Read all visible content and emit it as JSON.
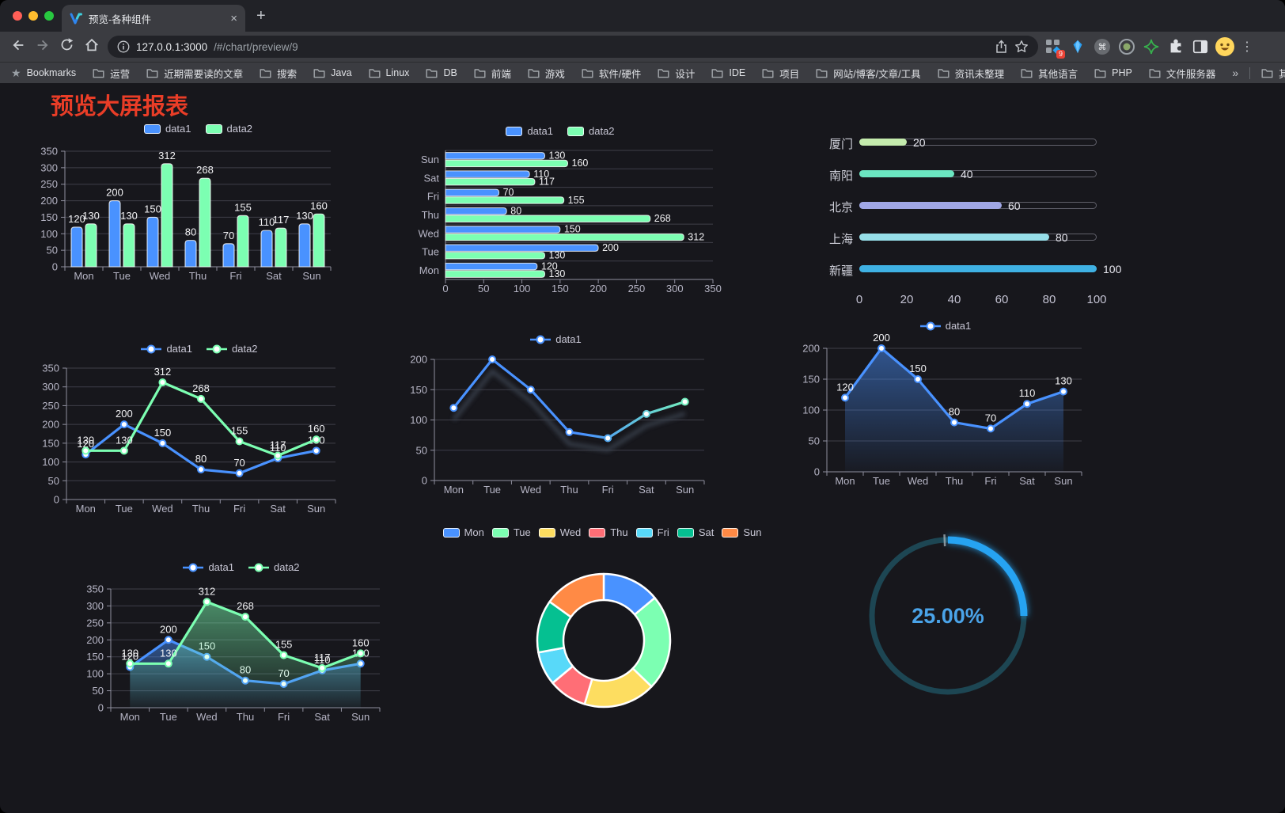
{
  "browser": {
    "tab": {
      "title": "预览-各种组件",
      "close_glyph": "×",
      "new_tab_glyph": "+"
    },
    "toolbar": {
      "url_host": "127.0.0.1:3000",
      "url_path": "/#/chart/preview/9",
      "extension_badge": "9"
    },
    "bookmarks_bar": {
      "label": "Bookmarks",
      "folders": [
        "运营",
        "近期需要读的文章",
        "搜索",
        "Java",
        "Linux",
        "DB",
        "前端",
        "游戏",
        "软件/硬件",
        "设计",
        "IDE",
        "项目",
        "网站/博客/文章/工具",
        "资讯未整理",
        "其他语言",
        "PHP",
        "文件服务器"
      ],
      "overflow_glyph": "»",
      "other_bookmarks": "其他书签"
    }
  },
  "page": {
    "title": "预览大屏报表",
    "title_color": "#e93d27",
    "background": "#17171c"
  },
  "chart_data": [
    {
      "name": "grouped-bar",
      "type": "bar",
      "legend": [
        "data1",
        "data2"
      ],
      "categories": [
        "Mon",
        "Tue",
        "Wed",
        "Thu",
        "Fri",
        "Sat",
        "Sun"
      ],
      "series": [
        {
          "name": "data1",
          "color": "#4992ff",
          "values": [
            120,
            200,
            150,
            80,
            70,
            110,
            130
          ]
        },
        {
          "name": "data2",
          "color": "#7cffb2",
          "values": [
            130,
            130,
            312,
            268,
            155,
            117,
            160
          ]
        }
      ],
      "ylim": [
        0,
        350
      ],
      "ytick_step": 50,
      "value_labels": true,
      "grid": true,
      "legend_position": "top"
    },
    {
      "name": "horizontal-bar",
      "type": "bar-horizontal",
      "legend": [
        "data1",
        "data2"
      ],
      "categories": [
        "Mon",
        "Tue",
        "Wed",
        "Thu",
        "Fri",
        "Sat",
        "Sun"
      ],
      "series": [
        {
          "name": "data1",
          "color": "#4992ff",
          "values": [
            120,
            200,
            150,
            80,
            70,
            110,
            130
          ]
        },
        {
          "name": "data2",
          "color": "#7cffb2",
          "values": [
            130,
            130,
            312,
            268,
            155,
            117,
            160
          ]
        }
      ],
      "xlim": [
        0,
        350
      ],
      "xtick_step": 50,
      "value_labels": true,
      "grid": true,
      "legend_position": "top"
    },
    {
      "name": "progress-list",
      "type": "progress",
      "rows": [
        {
          "label": "厦门",
          "value": 20,
          "color": "#c4ebad"
        },
        {
          "label": "南阳",
          "value": 40,
          "color": "#6be6c1"
        },
        {
          "label": "北京",
          "value": 60,
          "color": "#a0a7e6"
        },
        {
          "label": "上海",
          "value": 80,
          "color": "#96dee8"
        },
        {
          "label": "新疆",
          "value": 100,
          "color": "#3fb1e3"
        }
      ],
      "xlim": [
        0,
        100
      ],
      "xticks": [
        0,
        20,
        40,
        60,
        80,
        100
      ]
    },
    {
      "name": "dual-line",
      "type": "line",
      "legend": [
        "data1",
        "data2"
      ],
      "categories": [
        "Mon",
        "Tue",
        "Wed",
        "Thu",
        "Fri",
        "Sat",
        "Sun"
      ],
      "series": [
        {
          "name": "data1",
          "color": "#4992ff",
          "values": [
            120,
            200,
            150,
            80,
            70,
            110,
            130
          ]
        },
        {
          "name": "data2",
          "color": "#7cffb2",
          "values": [
            130,
            130,
            312,
            268,
            155,
            117,
            160
          ]
        }
      ],
      "ylim": [
        0,
        350
      ],
      "ytick_step": 50,
      "value_labels": true,
      "grid": true,
      "legend_position": "top"
    },
    {
      "name": "gradient-line",
      "type": "line",
      "legend": [
        "data1"
      ],
      "categories": [
        "Mon",
        "Tue",
        "Wed",
        "Thu",
        "Fri",
        "Sat",
        "Sun"
      ],
      "series": [
        {
          "name": "data1",
          "color": "#4992ff",
          "color_end": "#7cffb2",
          "values": [
            120,
            200,
            150,
            80,
            70,
            110,
            130
          ]
        }
      ],
      "ylim": [
        0,
        200
      ],
      "ytick_step": 50,
      "value_labels": false,
      "shadow": true,
      "grid": true,
      "legend_position": "top"
    },
    {
      "name": "area-line",
      "type": "line",
      "legend": [
        "data1"
      ],
      "categories": [
        "Mon",
        "Tue",
        "Wed",
        "Thu",
        "Fri",
        "Sat",
        "Sun"
      ],
      "series": [
        {
          "name": "data1",
          "color": "#4992ff",
          "values": [
            120,
            200,
            150,
            80,
            70,
            110,
            130
          ],
          "area": true
        }
      ],
      "ylim": [
        0,
        200
      ],
      "ytick_step": 50,
      "value_labels": true,
      "grid": true,
      "legend_position": "top"
    },
    {
      "name": "dual-area-line",
      "type": "line",
      "legend": [
        "data1",
        "data2"
      ],
      "categories": [
        "Mon",
        "Tue",
        "Wed",
        "Thu",
        "Fri",
        "Sat",
        "Sun"
      ],
      "series": [
        {
          "name": "data1",
          "color": "#4992ff",
          "values": [
            120,
            200,
            150,
            80,
            70,
            110,
            130
          ],
          "area": true
        },
        {
          "name": "data2",
          "color": "#7cffb2",
          "values": [
            130,
            130,
            312,
            268,
            155,
            117,
            160
          ],
          "area": true
        }
      ],
      "ylim": [
        0,
        350
      ],
      "ytick_step": 50,
      "value_labels": true,
      "grid": true,
      "legend_position": "top"
    },
    {
      "name": "donut",
      "type": "pie",
      "labels": [
        "Mon",
        "Tue",
        "Wed",
        "Thu",
        "Fri",
        "Sat",
        "Sun"
      ],
      "values": [
        120,
        200,
        150,
        80,
        70,
        110,
        130
      ],
      "colors": [
        "#4992ff",
        "#7cffb2",
        "#fddd60",
        "#ff6e76",
        "#58d9f9",
        "#05c091",
        "#ff8a45"
      ],
      "legend_position": "top",
      "shape": "donut",
      "border_color": "#ffffff"
    },
    {
      "name": "gauge",
      "type": "gauge",
      "value": 25,
      "max": 100,
      "display": "25.00%",
      "color": "#28a3f2",
      "track_color": "#1d4653",
      "text_color": "#4aa3e8"
    }
  ]
}
